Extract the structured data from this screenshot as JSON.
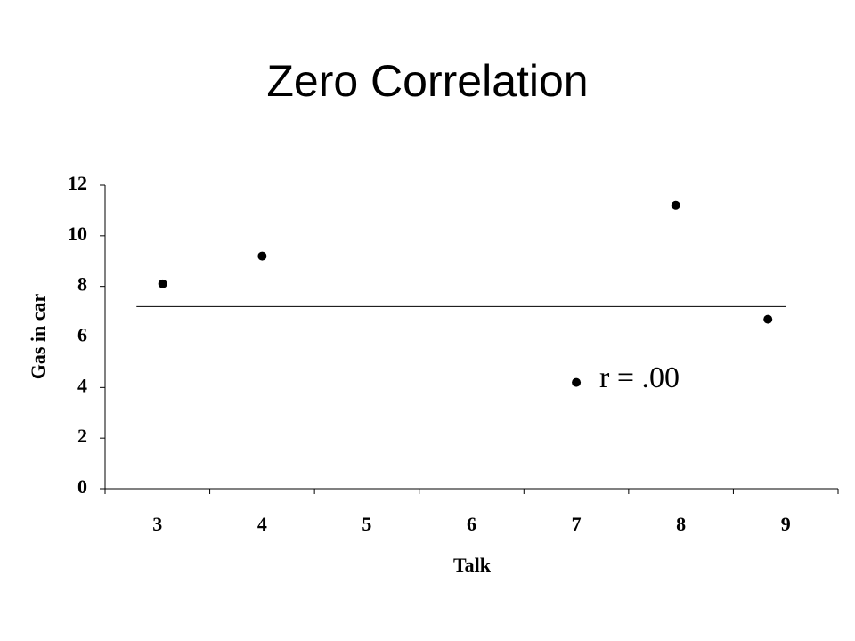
{
  "chart_data": {
    "type": "scatter",
    "title": "Zero Correlation",
    "x_label": "Talk",
    "y_label": "Gas in car",
    "x": [
      3.05,
      4.0,
      7.0,
      7.95,
      8.83
    ],
    "values": [
      8.1,
      9.2,
      4.2,
      11.2,
      6.7
    ],
    "color": "#000000",
    "fit_line": {
      "x": [
        2.8,
        9.0
      ],
      "values": [
        7.2,
        7.2
      ]
    },
    "annotation": "r = .00",
    "xlim": [
      2.5,
      9.5
    ],
    "xticks": [
      3,
      4,
      5,
      6,
      7,
      8,
      9
    ],
    "ylim": [
      0,
      12
    ],
    "yticks": [
      0,
      2,
      4,
      6,
      8,
      10,
      12
    ],
    "grid": false
  }
}
